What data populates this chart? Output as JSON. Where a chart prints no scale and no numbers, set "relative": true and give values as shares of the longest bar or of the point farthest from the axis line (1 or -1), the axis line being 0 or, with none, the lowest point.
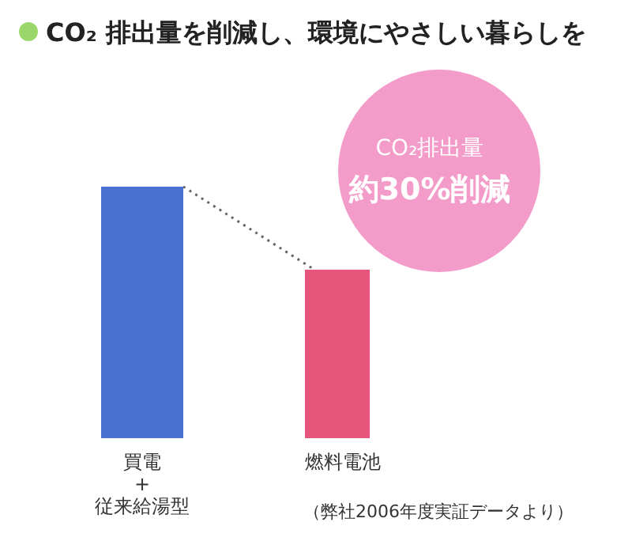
{
  "chart_data": {
    "type": "bar",
    "relative": true,
    "title": "CO₂ 排出量を削減し、環境にやさしい暮らしを",
    "categories": [
      "買電\n+\n従来給湯型",
      "燃料電池"
    ],
    "values": [
      1,
      0.67
    ],
    "colors": [
      "#4a72d2",
      "#e8557c"
    ],
    "annotations": [
      "CO₂排出量",
      "約30%削減",
      "（弊社2006年度実証データより）"
    ]
  }
}
